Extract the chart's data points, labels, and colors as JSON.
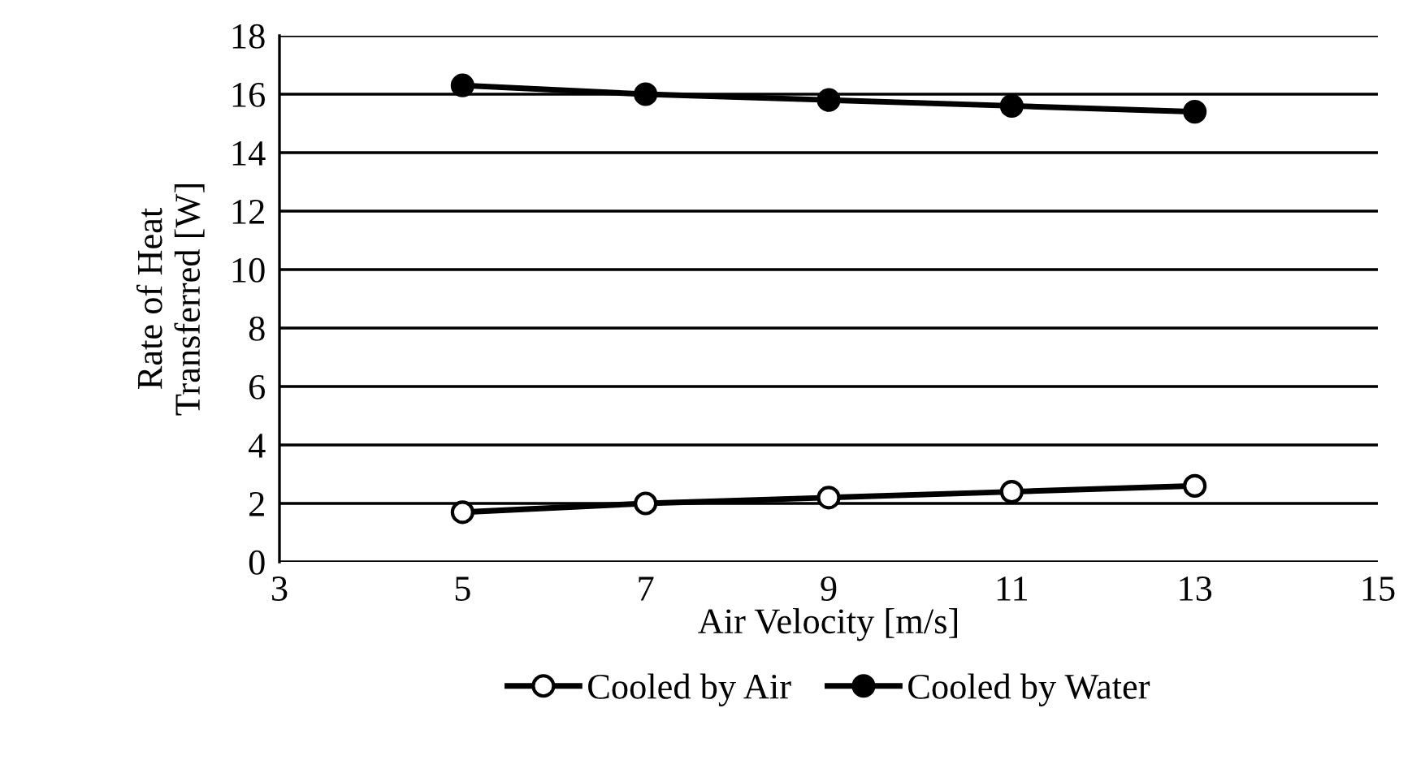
{
  "chart_data": {
    "type": "line",
    "xlabel": "Air Velocity [m/s]",
    "ylabel": "Rate of Heat\nTransferred [W]",
    "x": [
      5,
      7,
      9,
      11,
      13
    ],
    "series": [
      {
        "name": "Cooled by Air",
        "color": "#000000",
        "values": [
          1.7,
          2.0,
          2.2,
          2.4,
          2.6
        ]
      },
      {
        "name": "Cooled by Water",
        "color": "#000000",
        "values": [
          16.3,
          16.0,
          15.8,
          15.6,
          15.4
        ]
      }
    ],
    "xlim": [
      3,
      15
    ],
    "xticks": [
      3,
      5,
      7,
      9,
      11,
      13,
      15
    ],
    "ylim": [
      0,
      18
    ],
    "yticks": [
      0,
      2,
      4,
      6,
      8,
      10,
      12,
      14,
      16,
      18
    ],
    "grid": "y",
    "legend": "bottom",
    "marker": "circle",
    "line_style": "solid"
  }
}
